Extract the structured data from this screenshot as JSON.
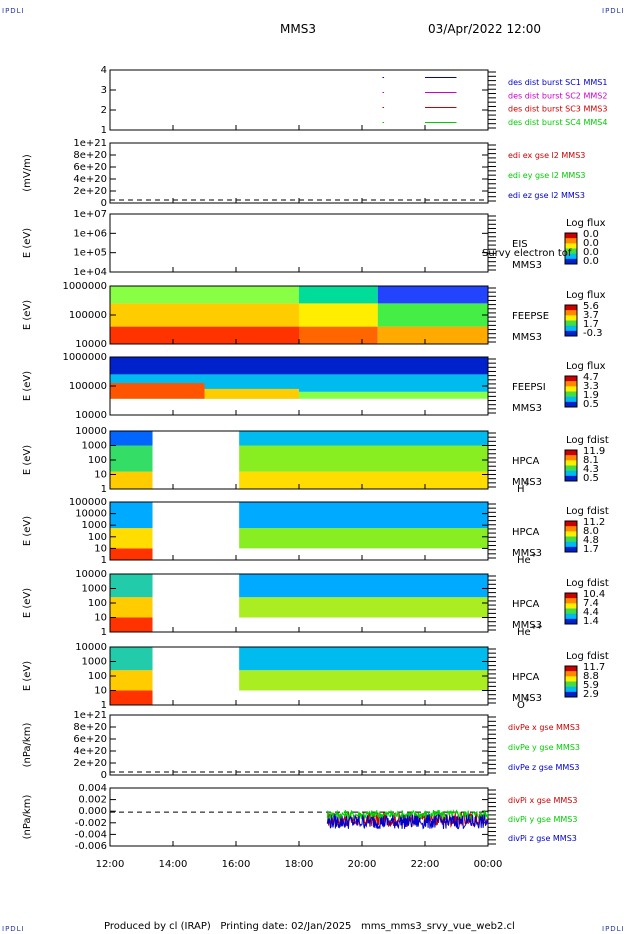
{
  "header": {
    "corner_label": "IPDLI",
    "spacecraft": "MMS3",
    "datetime": "03/Apr/2022 12:00"
  },
  "footer": {
    "produced_by": "Produced by cl (IRAP)",
    "printing_date": "Printing date: 02/Jan/2025",
    "script_name": "mms_mms3_srvy_vue_web2.cl"
  },
  "colors": {
    "black": "#000000",
    "red": "#cc0000",
    "green": "#00cc00",
    "blue": "#0000cc",
    "magenta": "#cc00cc"
  },
  "chart_data": [
    {
      "id": "burst",
      "type": "line",
      "ylabel": "",
      "ylim": [
        0.5,
        4.5
      ],
      "yticks": [
        "1",
        "2",
        "3",
        "4"
      ],
      "series": [
        {
          "name": "des dist burst SC1 MMS1",
          "color": "#0000cc",
          "level": 4,
          "segments": [
            [
              20.65,
              20.7
            ],
            [
              22.0,
              23.0
            ]
          ]
        },
        {
          "name": "des dist burst SC2 MMS2",
          "color": "#cc00cc",
          "level": 3,
          "segments": [
            [
              20.65,
              20.7
            ],
            [
              22.0,
              23.0
            ]
          ]
        },
        {
          "name": "des dist burst SC3 MMS3",
          "color": "#cc0000",
          "level": 2,
          "segments": [
            [
              20.65,
              20.7
            ],
            [
              22.0,
              23.0
            ]
          ]
        },
        {
          "name": "des dist burst SC4 MMS4",
          "color": "#00cc00",
          "level": 1,
          "segments": [
            [
              20.65,
              20.7
            ],
            [
              22.0,
              23.0
            ]
          ]
        }
      ]
    },
    {
      "id": "edi",
      "type": "line",
      "ylabel": "(mV/m)",
      "yticks": [
        "0",
        "2e+20",
        "4e+20",
        "6e+20",
        "8e+20",
        "1e+21"
      ],
      "zero_line": true,
      "series": [
        {
          "name": "edi ex gse l2 MMS3",
          "color": "#cc0000"
        },
        {
          "name": "edi ey gse l2 MMS3",
          "color": "#00cc00"
        },
        {
          "name": "edi ez gse l2 MMS3",
          "color": "#0000cc"
        }
      ]
    },
    {
      "id": "eis",
      "type": "heatmap",
      "ylabel": "E (eV)",
      "yticks": [
        "1e+04",
        "1e+05",
        "1e+06",
        "1e+07"
      ],
      "instrument": [
        "EIS",
        "MMS3"
      ],
      "overlay_text": "Survy electron tof",
      "colorbar": {
        "title": "Log flux",
        "ticks": [
          "0.0",
          "0.0",
          "0.0",
          "0.0"
        ]
      },
      "cells": []
    },
    {
      "id": "feepse",
      "type": "heatmap",
      "ylabel": "E (eV)",
      "yticks": [
        "10000",
        "100000",
        "1000000"
      ],
      "instrument": [
        "FEEPSE",
        "MMS3"
      ],
      "colorbar": {
        "title": "Log flux",
        "ticks": [
          "5.6",
          "3.7",
          "1.7",
          "-0.3"
        ]
      },
      "cells": [
        {
          "t": [
            12.0,
            18.0
          ],
          "e": [
            0.0,
            0.3
          ],
          "c": "#ff3300"
        },
        {
          "t": [
            12.0,
            18.0
          ],
          "e": [
            0.3,
            0.7
          ],
          "c": "#ffcc00"
        },
        {
          "t": [
            12.0,
            18.0
          ],
          "e": [
            0.7,
            1.0
          ],
          "c": "#88ff44"
        },
        {
          "t": [
            18.0,
            20.5
          ],
          "e": [
            0.0,
            0.3
          ],
          "c": "#ff6600"
        },
        {
          "t": [
            18.0,
            20.5
          ],
          "e": [
            0.3,
            0.7
          ],
          "c": "#ffee00"
        },
        {
          "t": [
            18.0,
            20.5
          ],
          "e": [
            0.7,
            1.0
          ],
          "c": "#00dd99"
        },
        {
          "t": [
            20.5,
            24.0
          ],
          "e": [
            0.0,
            0.3
          ],
          "c": "#ffaa00"
        },
        {
          "t": [
            20.5,
            24.0
          ],
          "e": [
            0.3,
            0.7
          ],
          "c": "#44ee44"
        },
        {
          "t": [
            20.5,
            24.0
          ],
          "e": [
            0.7,
            1.0
          ],
          "c": "#2244ff"
        }
      ]
    },
    {
      "id": "feepsi",
      "type": "heatmap",
      "ylabel": "E (eV)",
      "yticks": [
        "10000",
        "100000",
        "1000000"
      ],
      "instrument": [
        "FEEPSI",
        "MMS3"
      ],
      "colorbar": {
        "title": "Log flux",
        "ticks": [
          "4.7",
          "3.3",
          "1.9",
          "0.5"
        ]
      },
      "cells": [
        {
          "t": [
            12.0,
            24.0
          ],
          "e": [
            0.28,
            0.4
          ],
          "c": "#88ff44"
        },
        {
          "t": [
            12.0,
            24.0
          ],
          "e": [
            0.4,
            0.7
          ],
          "c": "#00bbee"
        },
        {
          "t": [
            12.0,
            24.0
          ],
          "e": [
            0.7,
            1.0
          ],
          "c": "#0022cc"
        },
        {
          "t": [
            12.0,
            15.0
          ],
          "e": [
            0.28,
            0.55
          ],
          "c": "#ff5500"
        },
        {
          "t": [
            15.0,
            18.0
          ],
          "e": [
            0.28,
            0.45
          ],
          "c": "#ffcc00"
        }
      ]
    },
    {
      "id": "hpca-h",
      "type": "heatmap",
      "ylabel": "E (eV)",
      "yticks": [
        "1",
        "10",
        "100",
        "1000",
        "10000"
      ],
      "instrument": [
        "HPCA",
        "MMS3",
        "H",
        "+"
      ],
      "colorbar": {
        "title": "Log fdist",
        "ticks": [
          "11.9",
          "8.1",
          "4.3",
          "0.5"
        ]
      },
      "cells": [
        {
          "t": [
            12.0,
            13.35
          ],
          "e": [
            0.0,
            0.3
          ],
          "c": "#ffcc00"
        },
        {
          "t": [
            12.0,
            13.35
          ],
          "e": [
            0.3,
            0.75
          ],
          "c": "#33dd66"
        },
        {
          "t": [
            12.0,
            13.35
          ],
          "e": [
            0.75,
            1.0
          ],
          "c": "#0066ff"
        },
        {
          "t": [
            16.1,
            24.0
          ],
          "e": [
            0.0,
            0.3
          ],
          "c": "#ffdd00"
        },
        {
          "t": [
            16.1,
            24.0
          ],
          "e": [
            0.3,
            0.75
          ],
          "c": "#88ee22"
        },
        {
          "t": [
            16.1,
            24.0
          ],
          "e": [
            0.75,
            1.0
          ],
          "c": "#00bbee"
        }
      ]
    },
    {
      "id": "hpca-he",
      "type": "heatmap",
      "ylabel": "E (eV)",
      "yticks": [
        "1",
        "10",
        "100",
        "1000",
        "10000",
        "100000"
      ],
      "instrument": [
        "HPCA",
        "MMS3",
        "He",
        "+"
      ],
      "colorbar": {
        "title": "Log fdist",
        "ticks": [
          "11.2",
          "8.0",
          "4.8",
          "1.7"
        ]
      },
      "cells": [
        {
          "t": [
            12.0,
            13.35
          ],
          "e": [
            0.0,
            0.2
          ],
          "c": "#ff3300"
        },
        {
          "t": [
            12.0,
            13.35
          ],
          "e": [
            0.2,
            0.55
          ],
          "c": "#ffdd00"
        },
        {
          "t": [
            12.0,
            13.35
          ],
          "e": [
            0.55,
            1.0
          ],
          "c": "#00aaff"
        },
        {
          "t": [
            16.1,
            24.0
          ],
          "e": [
            0.0,
            0.2
          ],
          "c": "#ffffff"
        },
        {
          "t": [
            16.1,
            24.0
          ],
          "e": [
            0.2,
            0.55
          ],
          "c": "#88ee22"
        },
        {
          "t": [
            16.1,
            24.0
          ],
          "e": [
            0.55,
            1.0
          ],
          "c": "#00aaff"
        }
      ]
    },
    {
      "id": "hpca-hepp",
      "type": "heatmap",
      "ylabel": "E (eV)",
      "yticks": [
        "1",
        "10",
        "100",
        "1000",
        "10000"
      ],
      "instrument": [
        "HPCA",
        "MMS3",
        "He",
        "++"
      ],
      "colorbar": {
        "title": "Log fdist",
        "ticks": [
          "10.4",
          "7.4",
          "4.4",
          "1.4"
        ]
      },
      "cells": [
        {
          "t": [
            12.0,
            13.35
          ],
          "e": [
            0.0,
            0.25
          ],
          "c": "#ff3300"
        },
        {
          "t": [
            12.0,
            13.35
          ],
          "e": [
            0.25,
            0.6
          ],
          "c": "#ffcc00"
        },
        {
          "t": [
            12.0,
            13.35
          ],
          "e": [
            0.6,
            1.0
          ],
          "c": "#22ccaa"
        },
        {
          "t": [
            16.1,
            24.0
          ],
          "e": [
            0.0,
            0.25
          ],
          "c": "#ffffff"
        },
        {
          "t": [
            16.1,
            24.0
          ],
          "e": [
            0.25,
            0.6
          ],
          "c": "#aaee22"
        },
        {
          "t": [
            16.1,
            24.0
          ],
          "e": [
            0.6,
            1.0
          ],
          "c": "#00aaff"
        }
      ]
    },
    {
      "id": "hpca-o",
      "type": "heatmap",
      "ylabel": "E (eV)",
      "yticks": [
        "1",
        "10",
        "100",
        "1000",
        "10000"
      ],
      "instrument": [
        "HPCA",
        "MMS3",
        "O",
        "+"
      ],
      "colorbar": {
        "title": "Log fdist",
        "ticks": [
          "11.7",
          "8.8",
          "5.9",
          "2.9"
        ]
      },
      "cells": [
        {
          "t": [
            12.0,
            13.35
          ],
          "e": [
            0.0,
            0.25
          ],
          "c": "#ff3300"
        },
        {
          "t": [
            12.0,
            13.35
          ],
          "e": [
            0.25,
            0.6
          ],
          "c": "#ffcc00"
        },
        {
          "t": [
            12.0,
            13.35
          ],
          "e": [
            0.6,
            1.0
          ],
          "c": "#22ccaa"
        },
        {
          "t": [
            16.1,
            24.0
          ],
          "e": [
            0.0,
            0.25
          ],
          "c": "#ffffff"
        },
        {
          "t": [
            16.1,
            24.0
          ],
          "e": [
            0.25,
            0.6
          ],
          "c": "#aaee22"
        },
        {
          "t": [
            16.1,
            24.0
          ],
          "e": [
            0.6,
            1.0
          ],
          "c": "#00bbee"
        }
      ]
    },
    {
      "id": "divpe",
      "type": "line",
      "ylabel": "(nPa/km)",
      "yticks": [
        "0",
        "2e+20",
        "4e+20",
        "6e+20",
        "8e+20",
        "1e+21"
      ],
      "zero_line": true,
      "series": [
        {
          "name": "divPe x gse MMS3",
          "color": "#cc0000"
        },
        {
          "name": "divPe y gse MMS3",
          "color": "#00cc00"
        },
        {
          "name": "divPe z gse MMS3",
          "color": "#0000cc"
        }
      ]
    },
    {
      "id": "divpi",
      "type": "line",
      "ylabel": "(nPa/km)",
      "ylim": [
        -0.007,
        0.005
      ],
      "yticks": [
        "-0.006",
        "-0.004",
        "-0.002",
        "0.000",
        "0.002",
        "0.004"
      ],
      "zero_line": true,
      "band_range": [
        18.9,
        24.0
      ],
      "series": [
        {
          "name": "divPi x gse MMS3",
          "color": "#cc0000",
          "center": -0.0015,
          "spread": 0.0015
        },
        {
          "name": "divPi y gse MMS3",
          "color": "#00cc00",
          "center": -0.0005,
          "spread": 0.001
        },
        {
          "name": "divPi z gse MMS3",
          "color": "#0000cc",
          "center": -0.002,
          "spread": 0.0015
        }
      ]
    }
  ],
  "time_axis": {
    "range": [
      12,
      24
    ],
    "ticks": [
      "12:00",
      "14:00",
      "16:00",
      "18:00",
      "20:00",
      "22:00",
      "00:00"
    ]
  }
}
